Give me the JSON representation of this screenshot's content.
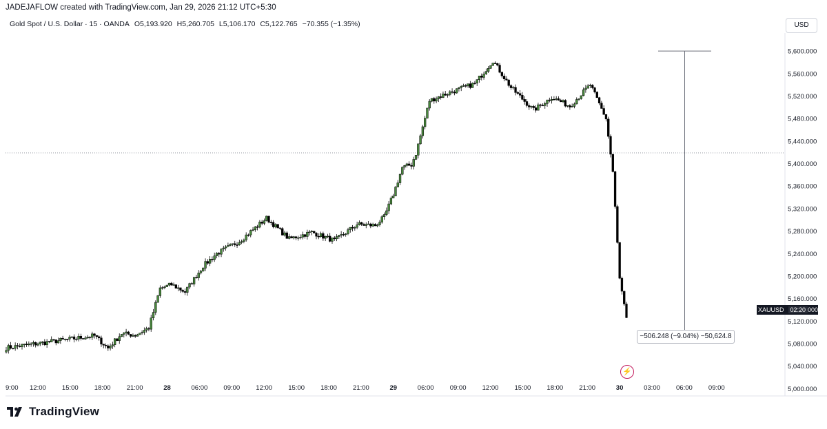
{
  "header": {
    "created_line": "JADEJAFLOW created with TradingView.com, Jan 29, 2026 21:12 UTC+5:30",
    "symbol_line": "Gold Spot / U.S. Dollar · 15 · OANDA",
    "open": "O5,193.920",
    "high": "H5,260.705",
    "low": "L5,106.170",
    "close": "C5,122.765",
    "change": "−70.355 (−1.35%)"
  },
  "currency_button": "USD",
  "ticker_badge": {
    "symbol": "XAUUSD",
    "countdown": "02:20",
    "price_tail": "000"
  },
  "measure_label": "−506.248 (−9.04%) −50,624.8",
  "brand": "TradingView",
  "colors": {
    "up": "#4a8a3e",
    "down": "#000000",
    "grid": "#9598a1",
    "measure": "#6a6d78",
    "accent": "#c2185b"
  },
  "chart_data": {
    "type": "candlestick",
    "ylim": [
      4987,
      5632
    ],
    "y_ticks": [
      5000,
      5040,
      5080,
      5120,
      5160,
      5200,
      5240,
      5280,
      5320,
      5360,
      5400,
      5440,
      5480,
      5520,
      5560,
      5600
    ],
    "y_tick_labels": [
      "5,000.000",
      "5,040.000",
      "5,080.000",
      "5,120.000",
      "5,160.000",
      "5,200.000",
      "5,240.000",
      "5,280.000",
      "5,320.000",
      "5,360.000",
      "5,400.000",
      "5,440.000",
      "5,480.000",
      "5,520.000",
      "5,560.000",
      "5,600.000"
    ],
    "x_ticks": [
      {
        "label": "9:00",
        "bold": false
      },
      {
        "label": "12:00",
        "bold": false
      },
      {
        "label": "15:00",
        "bold": false
      },
      {
        "label": "18:00",
        "bold": false
      },
      {
        "label": "21:00",
        "bold": false
      },
      {
        "label": "28",
        "bold": true
      },
      {
        "label": "06:00",
        "bold": false
      },
      {
        "label": "09:00",
        "bold": false
      },
      {
        "label": "12:00",
        "bold": false
      },
      {
        "label": "15:00",
        "bold": false
      },
      {
        "label": "18:00",
        "bold": false
      },
      {
        "label": "21:00",
        "bold": false
      },
      {
        "label": "29",
        "bold": true
      },
      {
        "label": "06:00",
        "bold": false
      },
      {
        "label": "09:00",
        "bold": false
      },
      {
        "label": "12:00",
        "bold": false
      },
      {
        "label": "15:00",
        "bold": false
      },
      {
        "label": "18:00",
        "bold": false
      },
      {
        "label": "21:00",
        "bold": false
      },
      {
        "label": "30",
        "bold": true
      },
      {
        "label": "03:00",
        "bold": false
      },
      {
        "label": "06:00",
        "bold": false
      },
      {
        "label": "09:00",
        "bold": false
      }
    ],
    "reference_line": 5419,
    "measure_from": 5600,
    "measure_to": 5094,
    "segments": [
      {
        "bars": 40,
        "start": 5072,
        "end": 5094
      },
      {
        "bars": 6,
        "start": 5094,
        "end": 5072
      },
      {
        "bars": 6,
        "start": 5072,
        "end": 5098
      },
      {
        "bars": 6,
        "start": 5098,
        "end": 5095
      },
      {
        "bars": 6,
        "start": 5095,
        "end": 5108
      },
      {
        "bars": 5,
        "start": 5108,
        "end": 5178
      },
      {
        "bars": 5,
        "start": 5178,
        "end": 5185
      },
      {
        "bars": 6,
        "start": 5185,
        "end": 5172
      },
      {
        "bars": 8,
        "start": 5172,
        "end": 5218
      },
      {
        "bars": 6,
        "start": 5218,
        "end": 5240
      },
      {
        "bars": 10,
        "start": 5240,
        "end": 5262
      },
      {
        "bars": 12,
        "start": 5262,
        "end": 5303
      },
      {
        "bars": 10,
        "start": 5303,
        "end": 5266
      },
      {
        "bars": 10,
        "start": 5266,
        "end": 5278
      },
      {
        "bars": 10,
        "start": 5278,
        "end": 5263
      },
      {
        "bars": 10,
        "start": 5263,
        "end": 5292
      },
      {
        "bars": 8,
        "start": 5292,
        "end": 5290
      },
      {
        "bars": 4,
        "start": 5290,
        "end": 5305
      },
      {
        "bars": 4,
        "start": 5305,
        "end": 5345
      },
      {
        "bars": 4,
        "start": 5345,
        "end": 5393
      },
      {
        "bars": 4,
        "start": 5393,
        "end": 5398
      },
      {
        "bars": 2,
        "start": 5398,
        "end": 5418
      },
      {
        "bars": 6,
        "start": 5418,
        "end": 5512
      },
      {
        "bars": 8,
        "start": 5512,
        "end": 5525
      },
      {
        "bars": 12,
        "start": 5525,
        "end": 5542
      },
      {
        "bars": 8,
        "start": 5542,
        "end": 5583
      },
      {
        "bars": 8,
        "start": 5583,
        "end": 5535
      },
      {
        "bars": 10,
        "start": 5535,
        "end": 5495
      },
      {
        "bars": 8,
        "start": 5495,
        "end": 5518
      },
      {
        "bars": 8,
        "start": 5518,
        "end": 5502
      },
      {
        "bars": 9,
        "start": 5502,
        "end": 5540
      },
      {
        "bars": 4,
        "start": 5540,
        "end": 5506
      },
      {
        "bars": 3,
        "start": 5506,
        "end": 5480
      },
      {
        "bars": 3,
        "start": 5480,
        "end": 5385
      },
      {
        "bars": 3,
        "start": 5385,
        "end": 5195
      },
      {
        "bars": 3,
        "start": 5195,
        "end": 5123
      }
    ]
  }
}
